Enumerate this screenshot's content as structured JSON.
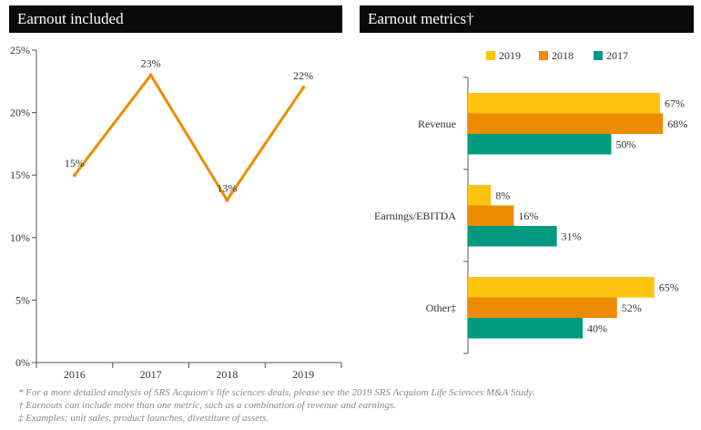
{
  "chart_data": [
    {
      "type": "line",
      "title": "Earnout included",
      "categories": [
        "2016",
        "2017",
        "2018",
        "2019"
      ],
      "values": [
        15,
        23,
        13,
        22
      ],
      "labels": [
        "15%",
        "23%",
        "13%",
        "22%"
      ],
      "ylim": [
        0,
        25
      ],
      "yticks": [
        "0%",
        "5%",
        "10%",
        "15%",
        "20%",
        "25%"
      ],
      "color": "#ef8c00"
    },
    {
      "type": "bar",
      "orientation": "horizontal",
      "title": "Earnout metrics†",
      "categories": [
        "Revenue",
        "Earnings/EBITDA",
        "Other‡"
      ],
      "series": [
        {
          "name": "2019",
          "values": [
            67,
            8,
            65
          ],
          "labels": [
            "67%",
            "8%",
            "65%"
          ],
          "color": "#ffc20e"
        },
        {
          "name": "2018",
          "values": [
            68,
            16,
            52
          ],
          "labels": [
            "68%",
            "16%",
            "52%"
          ],
          "color": "#ec8b00"
        },
        {
          "name": "2017",
          "values": [
            50,
            31,
            40
          ],
          "labels": [
            "50%",
            "31%",
            "40%"
          ],
          "color": "#009a80"
        }
      ],
      "legend": "top"
    }
  ],
  "footnotes": [
    "* For a more detailed analysis of SRS Acquiom's life sciences deals, please see the 2019 SRS Acquiom Life Sciences M&A Study.",
    "† Earnouts can include more than one metric, such as a combination of revenue and earnings.",
    "‡ Examples: unit sales, product launches, divestiture of assets."
  ]
}
